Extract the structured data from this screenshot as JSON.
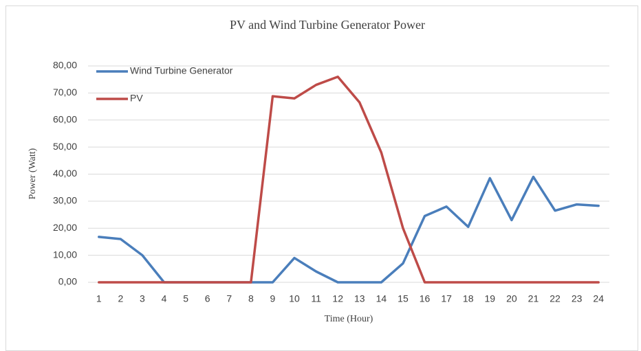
{
  "chart_data": {
    "type": "line",
    "title": "PV and Wind Turbine Generator Power",
    "x_label": "Time (Hour)",
    "y_label": "Power (Watt)",
    "categories": [
      "1",
      "2",
      "3",
      "4",
      "5",
      "6",
      "7",
      "8",
      "9",
      "10",
      "11",
      "12",
      "13",
      "14",
      "15",
      "16",
      "17",
      "18",
      "19",
      "20",
      "21",
      "22",
      "23",
      "24"
    ],
    "series": [
      {
        "name": "Wind Turbine Generator",
        "color": "#4a7ebb",
        "values": [
          16.8,
          16,
          10,
          0,
          0,
          0,
          0,
          0,
          0,
          9,
          4,
          0,
          0,
          0,
          7,
          24.5,
          28,
          20.5,
          38.5,
          23,
          39,
          26.5,
          28.8,
          28.3
        ]
      },
      {
        "name": "PV",
        "color": "#be4b48",
        "values": [
          0,
          0,
          0,
          0,
          0,
          0,
          0,
          0,
          68.8,
          68,
          73,
          76,
          66.5,
          48,
          20,
          0,
          0,
          0,
          0,
          0,
          0,
          0,
          0,
          0
        ]
      }
    ],
    "ylim": [
      0,
      80
    ],
    "yticks": [
      {
        "value": 0,
        "label": "0,00"
      },
      {
        "value": 10,
        "label": "10,00"
      },
      {
        "value": 20,
        "label": "20,00"
      },
      {
        "value": 30,
        "label": "30,00"
      },
      {
        "value": 40,
        "label": "40,00"
      },
      {
        "value": 50,
        "label": "50,00"
      },
      {
        "value": 60,
        "label": "60,00"
      },
      {
        "value": 70,
        "label": "70,00"
      },
      {
        "value": 80,
        "label": "80,00"
      }
    ],
    "grid": true,
    "legend": "top-left"
  }
}
